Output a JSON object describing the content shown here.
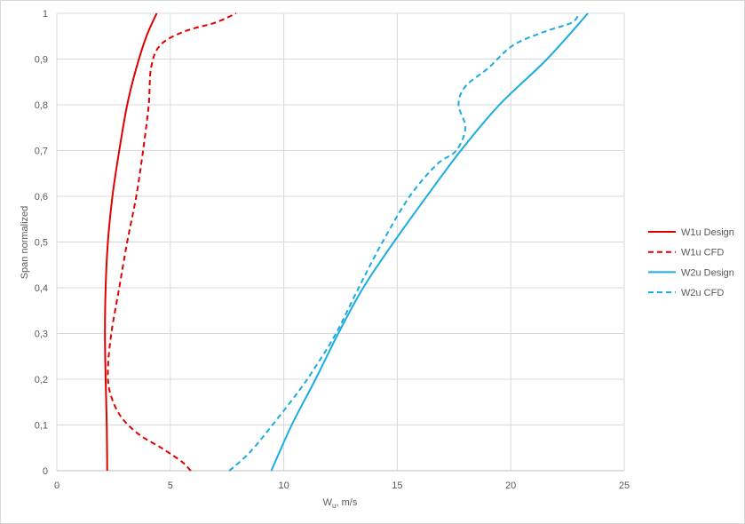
{
  "chart_data": {
    "type": "line",
    "title": "",
    "xlabel_main": "W",
    "xlabel_sub": "u",
    "xlabel_rest": ", m/s",
    "ylabel": "Span normalized",
    "xlim": [
      0,
      25
    ],
    "ylim": [
      0,
      1
    ],
    "x_ticks": [
      0,
      5,
      10,
      15,
      20,
      25
    ],
    "x_tick_labels": [
      "0",
      "5",
      "10",
      "15",
      "20",
      "25"
    ],
    "y_ticks": [
      0,
      0.1,
      0.2,
      0.3,
      0.4,
      0.5,
      0.6,
      0.7,
      0.8,
      0.9,
      1
    ],
    "y_tick_labels": [
      "0",
      "0,1",
      "0,2",
      "0,3",
      "0,4",
      "0,5",
      "0,6",
      "0,7",
      "0,8",
      "0,9",
      "1"
    ],
    "grid": true,
    "legend_position": "right",
    "series": [
      {
        "name": "W1u Design",
        "color": "#e00000",
        "dash": "solid",
        "points": [
          [
            2.22,
            0
          ],
          [
            2.2,
            0.1
          ],
          [
            2.15,
            0.2
          ],
          [
            2.12,
            0.3
          ],
          [
            2.15,
            0.4
          ],
          [
            2.25,
            0.5
          ],
          [
            2.45,
            0.6
          ],
          [
            2.75,
            0.7
          ],
          [
            3.1,
            0.8
          ],
          [
            3.5,
            0.88
          ],
          [
            3.95,
            0.95
          ],
          [
            4.4,
            1.0
          ]
        ]
      },
      {
        "name": "W1u CFD",
        "color": "#e00000",
        "dash": "dashed",
        "points": [
          [
            5.9,
            0
          ],
          [
            5.5,
            0.02
          ],
          [
            4.6,
            0.05
          ],
          [
            3.6,
            0.08
          ],
          [
            2.8,
            0.12
          ],
          [
            2.35,
            0.17
          ],
          [
            2.25,
            0.22
          ],
          [
            2.4,
            0.3
          ],
          [
            2.75,
            0.4
          ],
          [
            3.1,
            0.5
          ],
          [
            3.5,
            0.6
          ],
          [
            3.8,
            0.7
          ],
          [
            4.05,
            0.8
          ],
          [
            4.15,
            0.88
          ],
          [
            4.55,
            0.93
          ],
          [
            5.6,
            0.96
          ],
          [
            7.0,
            0.98
          ],
          [
            7.9,
            1.0
          ]
        ]
      },
      {
        "name": "W2u Design",
        "color": "#1aace0",
        "dash": "solid",
        "points": [
          [
            9.45,
            0
          ],
          [
            10.35,
            0.1
          ],
          [
            11.4,
            0.2
          ],
          [
            12.4,
            0.3
          ],
          [
            13.5,
            0.4
          ],
          [
            14.85,
            0.5
          ],
          [
            16.3,
            0.6
          ],
          [
            17.8,
            0.7
          ],
          [
            19.5,
            0.8
          ],
          [
            21.6,
            0.9
          ],
          [
            23.4,
            1.0
          ]
        ]
      },
      {
        "name": "W2u CFD",
        "color": "#1aace0",
        "dash": "dashed",
        "points": [
          [
            7.6,
            0
          ],
          [
            8.5,
            0.04
          ],
          [
            9.5,
            0.1
          ],
          [
            10.6,
            0.17
          ],
          [
            11.3,
            0.22
          ],
          [
            12.3,
            0.3
          ],
          [
            13.3,
            0.4
          ],
          [
            14.35,
            0.5
          ],
          [
            15.55,
            0.6
          ],
          [
            16.75,
            0.67
          ],
          [
            17.6,
            0.7
          ],
          [
            18.0,
            0.75
          ],
          [
            17.7,
            0.8
          ],
          [
            18.0,
            0.84
          ],
          [
            19.0,
            0.88
          ],
          [
            20.1,
            0.93
          ],
          [
            21.5,
            0.96
          ],
          [
            22.7,
            0.98
          ],
          [
            23.0,
            1.0
          ]
        ]
      }
    ]
  }
}
